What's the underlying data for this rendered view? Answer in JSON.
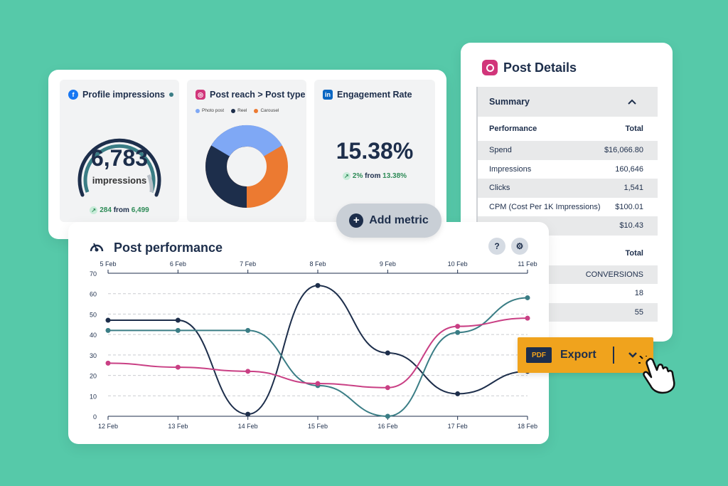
{
  "metrics": {
    "profile_impressions": {
      "title": "Profile impressions",
      "value": "6,783",
      "unit": "impressions",
      "delta": "284",
      "from_label": "from",
      "from_value": "6,499",
      "gauge_fraction": 0.8
    },
    "post_reach": {
      "title": "Post reach > Post type",
      "legend": [
        {
          "label": "Photo post",
          "color": "#7fa8f5"
        },
        {
          "label": "Reel",
          "color": "#1d2e4b"
        },
        {
          "label": "Carousel",
          "color": "#ec7a31"
        }
      ]
    },
    "engagement_rate": {
      "title": "Engagement Rate",
      "value": "15.38%",
      "delta": "2%",
      "from_label": "from",
      "from_value": "13.38%"
    }
  },
  "add_metric": {
    "label": "Add metric"
  },
  "post_details": {
    "title": "Post Details",
    "summary_label": "Summary",
    "header": {
      "col1": "Performance",
      "col2": "Total"
    },
    "rows": [
      {
        "label": "Spend",
        "value": "$16,066.80"
      },
      {
        "label": "Impressions",
        "value": "160,646"
      },
      {
        "label": "Clicks",
        "value": "1,541"
      },
      {
        "label": "CPM (Cost Per 1K Impressions)",
        "value": "$100.01"
      },
      {
        "label": "",
        "value": "$10.43"
      }
    ],
    "header2": {
      "col1": "",
      "col2": "Total"
    },
    "rows2": [
      {
        "label": "",
        "value": "CONVERSIONS"
      },
      {
        "label": "",
        "value": "18"
      },
      {
        "label": "",
        "value": "55"
      }
    ]
  },
  "post_performance": {
    "title": "Post performance",
    "help_label": "?"
  },
  "export": {
    "badge": "PDF",
    "label": "Export"
  },
  "chart_data": {
    "type": "line",
    "x_top": [
      "5 Feb",
      "6 Feb",
      "7 Feb",
      "8 Feb",
      "9 Feb",
      "10 Feb",
      "11 Feb"
    ],
    "x_bottom": [
      "12 Feb",
      "13 Feb",
      "14 Feb",
      "15 Feb",
      "16 Feb",
      "17 Feb",
      "18 Feb"
    ],
    "y_ticks": [
      0,
      10,
      20,
      30,
      40,
      50,
      60,
      70
    ],
    "ylim": [
      0,
      70
    ],
    "series": [
      {
        "color": "#1d2e4b",
        "values": [
          47,
          47,
          1,
          64,
          31,
          11,
          22
        ]
      },
      {
        "color": "#3a7d85",
        "values": [
          42,
          42,
          42,
          15,
          0,
          41,
          58
        ]
      },
      {
        "color": "#c93f84",
        "values": [
          26,
          24,
          22,
          16,
          14,
          44,
          48
        ]
      }
    ],
    "grid": true
  }
}
